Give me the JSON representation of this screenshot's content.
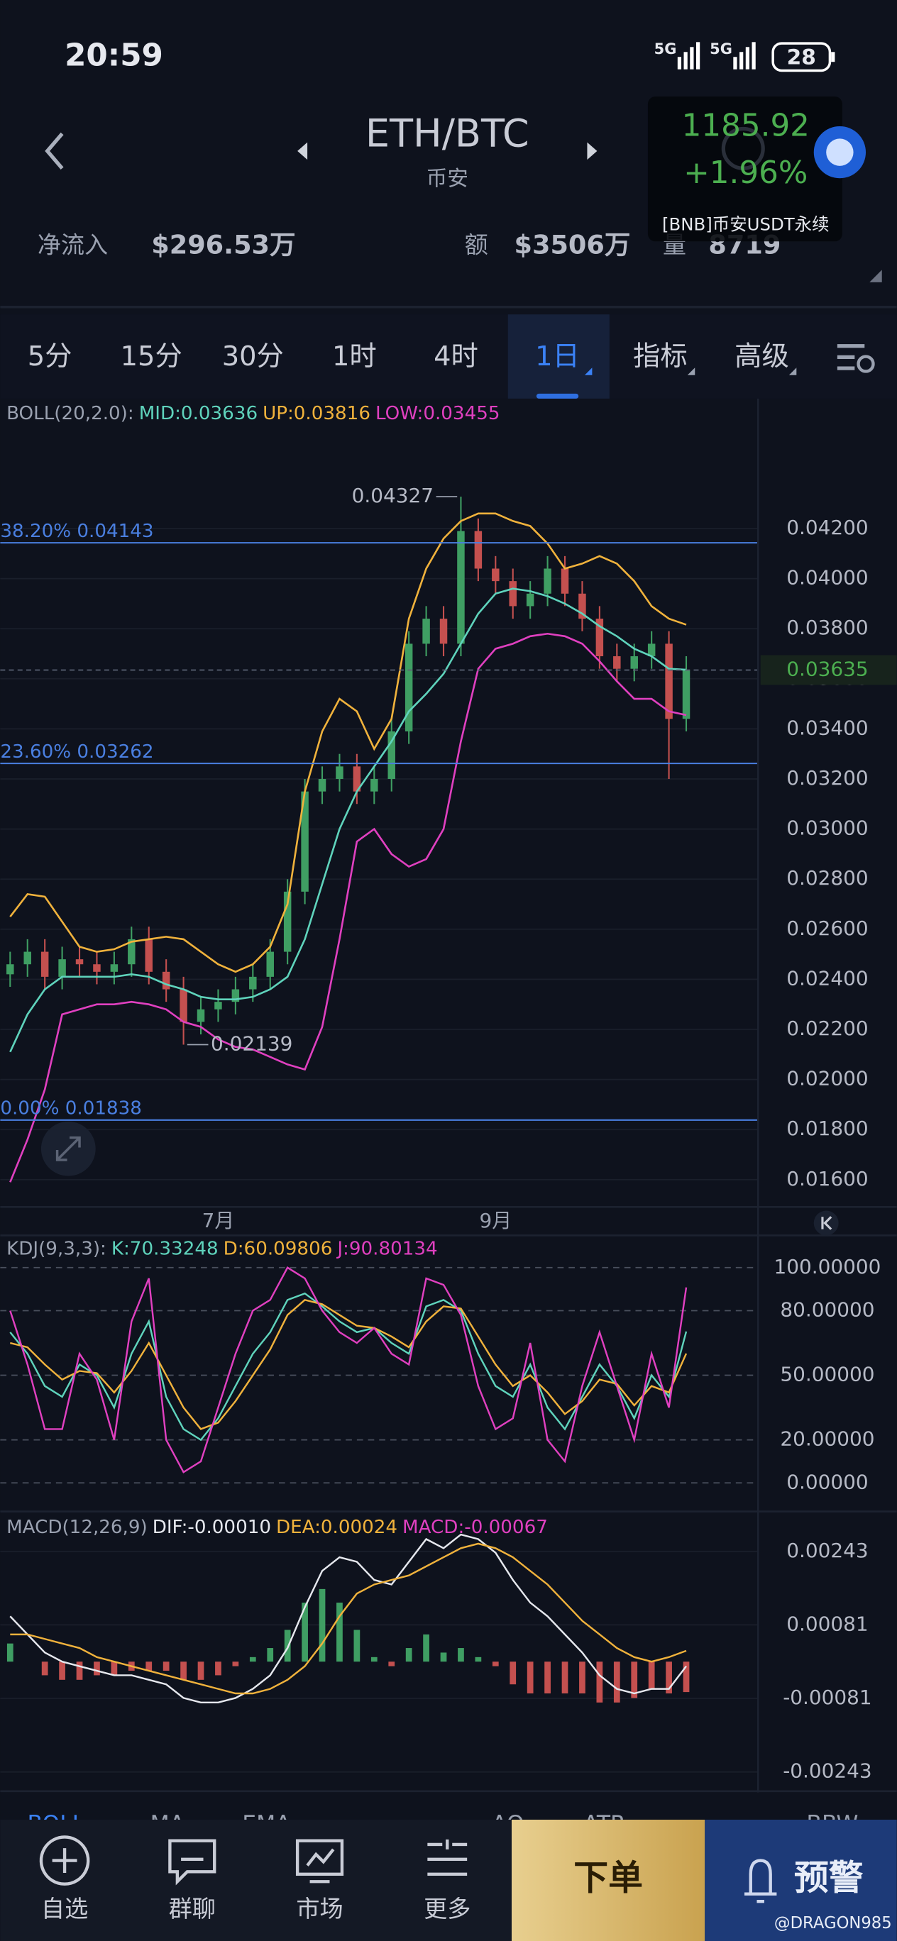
{
  "status_bar": {
    "time": "20:59",
    "network": [
      "5G",
      "5G"
    ],
    "battery": "28"
  },
  "header": {
    "pair": "ETH/BTC",
    "exchange": "币安",
    "net_inflow_label": "净流入",
    "net_inflow": "$296.53万",
    "amount_label": "额",
    "amount": "$3506万",
    "volume_label": "量",
    "volume": "8719"
  },
  "ticker_overlay": {
    "price": "1185.92",
    "change": "+1.96%",
    "name": "[BNB]币安USDT永续"
  },
  "timeframes": {
    "items": [
      "5分",
      "15分",
      "30分",
      "1时",
      "4时",
      "1日",
      "指标",
      "高级"
    ],
    "active": 5
  },
  "chart_data": [
    {
      "type": "candlestick",
      "title": "BOLL(20,2.0):",
      "categories": [
        null,
        null,
        null,
        null,
        null,
        null,
        null,
        null,
        null,
        null,
        null,
        null,
        "7月",
        null,
        null,
        null,
        null,
        null,
        null,
        null,
        null,
        null,
        null,
        null,
        null,
        null,
        null,
        null,
        "9月",
        null,
        null,
        null,
        null,
        null,
        null,
        null,
        null,
        null,
        null,
        null
      ],
      "open": [
        0.0242,
        0.0246,
        0.0251,
        0.0241,
        0.0248,
        0.0246,
        0.0243,
        0.0246,
        0.0256,
        0.0243,
        0.0236,
        0.0223,
        0.0228,
        0.0231,
        0.0236,
        0.0241,
        0.0251,
        0.0275,
        0.0315,
        0.032,
        0.0325,
        0.0315,
        0.032,
        0.0339,
        0.0374,
        0.0384,
        0.0374,
        0.0419,
        0.0404,
        0.0399,
        0.0389,
        0.0394,
        0.0404,
        0.0394,
        0.0384,
        0.0369,
        0.0364,
        0.0369,
        0.0374,
        0.0344
      ],
      "high": [
        0.0251,
        0.0256,
        0.0256,
        0.0253,
        0.0253,
        0.0251,
        0.0251,
        0.0261,
        0.0261,
        0.0248,
        0.0241,
        0.0233,
        0.0236,
        0.0241,
        0.0246,
        0.0256,
        0.028,
        0.032,
        0.0325,
        0.033,
        0.033,
        0.0325,
        0.0344,
        0.0379,
        0.0389,
        0.0389,
        0.04327,
        0.0424,
        0.0409,
        0.0404,
        0.0399,
        0.0409,
        0.0409,
        0.0399,
        0.0389,
        0.0374,
        0.0374,
        0.0379,
        0.0379,
        0.0369
      ],
      "low": [
        0.0237,
        0.0241,
        0.0236,
        0.0236,
        0.0241,
        0.0238,
        0.0238,
        0.0241,
        0.0238,
        0.0231,
        0.02139,
        0.0218,
        0.0223,
        0.0226,
        0.0231,
        0.0236,
        0.0246,
        0.027,
        0.031,
        0.0315,
        0.031,
        0.031,
        0.0315,
        0.0334,
        0.0369,
        0.0369,
        0.0369,
        0.0399,
        0.0394,
        0.0384,
        0.0384,
        0.0389,
        0.0389,
        0.0379,
        0.0364,
        0.0359,
        0.0359,
        0.0364,
        0.032,
        0.0339
      ],
      "close": [
        0.0246,
        0.0251,
        0.0241,
        0.0248,
        0.0246,
        0.0243,
        0.0246,
        0.0256,
        0.0243,
        0.0236,
        0.0223,
        0.0228,
        0.0231,
        0.0236,
        0.0241,
        0.0251,
        0.0275,
        0.0315,
        0.032,
        0.0325,
        0.0315,
        0.032,
        0.0339,
        0.0374,
        0.0384,
        0.0374,
        0.0419,
        0.0404,
        0.0399,
        0.0389,
        0.0394,
        0.0404,
        0.0394,
        0.0384,
        0.0369,
        0.0364,
        0.0369,
        0.0374,
        0.0344,
        0.03635
      ],
      "up_color": "#3f9e63",
      "down_color": "#c4504f",
      "series": [
        {
          "name": "MID:0.03636",
          "color": "#5fd3bc",
          "values": [
            0.0211,
            0.0226,
            0.0236,
            0.0241,
            0.0241,
            0.0241,
            0.0241,
            0.0242,
            0.0241,
            0.0238,
            0.0236,
            0.0233,
            0.0232,
            0.0232,
            0.0233,
            0.0236,
            0.0241,
            0.0256,
            0.0278,
            0.03,
            0.0315,
            0.0325,
            0.0335,
            0.0347,
            0.0354,
            0.0362,
            0.0374,
            0.0386,
            0.0394,
            0.0396,
            0.0395,
            0.0393,
            0.039,
            0.0386,
            0.0381,
            0.0377,
            0.0372,
            0.0369,
            0.0364,
            0.03636
          ]
        },
        {
          "name": "UP:0.03816",
          "color": "#f0b23c",
          "values": [
            0.0265,
            0.0274,
            0.0273,
            0.0263,
            0.0253,
            0.0251,
            0.0252,
            0.0255,
            0.0256,
            0.0257,
            0.0256,
            0.0251,
            0.0246,
            0.0243,
            0.0246,
            0.0253,
            0.027,
            0.0315,
            0.0339,
            0.0352,
            0.0347,
            0.0332,
            0.0344,
            0.0384,
            0.0404,
            0.0416,
            0.0423,
            0.0426,
            0.0426,
            0.0423,
            0.0421,
            0.0414,
            0.0404,
            0.0406,
            0.0409,
            0.0406,
            0.0399,
            0.0389,
            0.0384,
            0.03816
          ]
        },
        {
          "name": "LOW:0.03455",
          "color": "#e040c0",
          "values": [
            0.0159,
            0.0176,
            0.0196,
            0.0226,
            0.0228,
            0.023,
            0.023,
            0.0231,
            0.023,
            0.0228,
            0.0223,
            0.0221,
            0.0216,
            0.0213,
            0.0212,
            0.0209,
            0.0206,
            0.0204,
            0.0221,
            0.0256,
            0.0295,
            0.03,
            0.029,
            0.0285,
            0.0288,
            0.03,
            0.0335,
            0.0364,
            0.0372,
            0.0374,
            0.0377,
            0.0378,
            0.0377,
            0.0374,
            0.0367,
            0.0359,
            0.0352,
            0.0352,
            0.0347,
            0.03455
          ]
        }
      ],
      "ylim": [
        0.01491,
        0.04704
      ],
      "yticks": [
        {
          "value": 0.016,
          "label": "0.01600"
        },
        {
          "value": 0.018,
          "label": "0.01800"
        },
        {
          "value": 0.02,
          "label": "0.02000"
        },
        {
          "value": 0.022,
          "label": "0.02200"
        },
        {
          "value": 0.024,
          "label": "0.02400"
        },
        {
          "value": 0.026,
          "label": "0.02600"
        },
        {
          "value": 0.028,
          "label": "0.02800"
        },
        {
          "value": 0.03,
          "label": "0.03000"
        },
        {
          "value": 0.032,
          "label": "0.03200"
        },
        {
          "value": 0.034,
          "label": "0.03400"
        },
        {
          "value": 0.036,
          "label": "0.03600"
        },
        {
          "value": 0.038,
          "label": "0.03800"
        },
        {
          "value": 0.04,
          "label": "0.04000"
        },
        {
          "value": 0.042,
          "label": "0.04200"
        }
      ],
      "grid": true,
      "grid_dashed": false,
      "last_price": {
        "value": 0.03635,
        "label": "0.03635"
      },
      "last_price_color": "#4caf50",
      "fib_levels": [
        {
          "value": 0.04143,
          "label": "38.20% 0.04143"
        },
        {
          "value": 0.03262,
          "label": "23.60% 0.03262"
        },
        {
          "value": 0.01838,
          "label": "0.00% 0.01838"
        }
      ],
      "fib_color": "#4a7fe0",
      "high_mark": 0.04327,
      "low_mark": 0.02139
    },
    {
      "type": "line",
      "title": "KDJ(9,3,3):",
      "series": [
        {
          "name": "K:70.33248",
          "color": "#5fd3bc",
          "values": [
            70,
            60,
            45,
            40,
            55,
            50,
            35,
            60,
            75,
            40,
            25,
            20,
            30,
            45,
            60,
            70,
            85,
            88,
            82,
            75,
            70,
            72,
            65,
            60,
            82,
            85,
            80,
            60,
            45,
            40,
            55,
            35,
            25,
            40,
            55,
            45,
            30,
            50,
            40,
            70.33248
          ]
        },
        {
          "name": "D:60.09806",
          "color": "#f0b23c",
          "values": [
            65,
            63,
            55,
            48,
            52,
            51,
            42,
            52,
            65,
            50,
            35,
            25,
            28,
            38,
            50,
            62,
            78,
            85,
            83,
            78,
            73,
            72,
            68,
            63,
            75,
            82,
            81,
            68,
            55,
            45,
            50,
            42,
            32,
            38,
            48,
            46,
            36,
            45,
            42,
            60.09806
          ]
        },
        {
          "name": "J:90.80134",
          "color": "#e040c0",
          "values": [
            80,
            55,
            25,
            25,
            60,
            48,
            20,
            75,
            95,
            20,
            5,
            10,
            35,
            60,
            80,
            85,
            100,
            95,
            80,
            70,
            65,
            72,
            60,
            55,
            95,
            92,
            78,
            45,
            25,
            30,
            65,
            20,
            10,
            45,
            70,
            45,
            20,
            60,
            35,
            90.80134
          ]
        }
      ],
      "ylim": [
        -9.8,
        113.8
      ],
      "yticks": [
        {
          "value": 0,
          "label": "0.00000"
        },
        {
          "value": 20,
          "label": "20.00000"
        },
        {
          "value": 50,
          "label": "50.00000"
        },
        {
          "value": 80,
          "label": "80.00000"
        },
        {
          "value": 100,
          "label": "100.00000"
        }
      ],
      "grid": true,
      "grid_dashed": true
    },
    {
      "type": "macd",
      "title": "MACD(12,26,9)",
      "series": [
        {
          "name": "DIF:-0.00010",
          "color": "#e6e8ee",
          "style": "line",
          "values": [
            0.001,
            0.0006,
            0.0002,
            0,
            -0.0001,
            -0.0002,
            -0.0003,
            -0.0003,
            -0.0004,
            -0.0005,
            -0.0008,
            -0.0009,
            -0.0009,
            -0.0008,
            -0.0006,
            -0.0003,
            0.0003,
            0.0012,
            0.002,
            0.0023,
            0.0022,
            0.0018,
            0.0017,
            0.0022,
            0.0027,
            0.0025,
            0.0028,
            0.0027,
            0.0024,
            0.0018,
            0.0013,
            0.001,
            0.0006,
            0.0002,
            -0.0003,
            -0.0006,
            -0.0007,
            -0.0006,
            -0.0006,
            -0.0001
          ]
        },
        {
          "name": "DEA:0.00024",
          "color": "#f0b23c",
          "style": "line",
          "values": [
            0.0006,
            0.0006,
            0.0005,
            0.0004,
            0.0003,
            0.0001,
            0,
            -0.0001,
            -0.0002,
            -0.0003,
            -0.0004,
            -0.0005,
            -0.0006,
            -0.0007,
            -0.0007,
            -0.0006,
            -0.0004,
            -0.0001,
            0.0004,
            0.001,
            0.0015,
            0.0017,
            0.0018,
            0.0019,
            0.0021,
            0.0023,
            0.0025,
            0.0026,
            0.0025,
            0.0023,
            0.002,
            0.0017,
            0.0013,
            0.0009,
            0.0006,
            0.0003,
            0.0001,
            0,
            0.0001,
            0.00024
          ]
        },
        {
          "name": "MACD:-0.00067",
          "color": "#e040c0",
          "style": "bar",
          "up_color": "#3f9e63",
          "down_color": "#c4504f",
          "values": [
            0.0004,
            0,
            -0.0003,
            -0.0004,
            -0.0004,
            -0.0003,
            -0.0003,
            -0.0002,
            -0.0002,
            -0.0002,
            -0.0004,
            -0.0004,
            -0.0003,
            -0.0001,
            0.0001,
            0.0003,
            0.0007,
            0.0013,
            0.0016,
            0.0013,
            0.0007,
            0.0001,
            -0.0001,
            0.0003,
            0.0006,
            0.0002,
            0.0003,
            0.0001,
            -0.0001,
            -0.0005,
            -0.0007,
            -0.0007,
            -0.0007,
            -0.0007,
            -0.0009,
            -0.0009,
            -0.0008,
            -0.0006,
            -0.0007,
            -0.00067
          ]
        }
      ],
      "ylim": [
        -0.0028,
        0.0032
      ],
      "yticks": [
        {
          "value": -0.00243,
          "label": "-0.00243"
        },
        {
          "value": -0.00081,
          "label": "-0.00081"
        },
        {
          "value": 0.00081,
          "label": "0.00081"
        },
        {
          "value": 0.00243,
          "label": "0.00243"
        }
      ],
      "grid": true,
      "grid_dashed": false
    }
  ],
  "indicator_tabs": [
    "BOLL",
    "MA",
    "EMA",
    "AO",
    "ATR",
    "BBW"
  ],
  "bottom_nav": {
    "items": [
      "自选",
      "群聊",
      "市场",
      "更多"
    ],
    "order": "下单",
    "alert": "预警"
  },
  "watermark": "@DRAGON985"
}
